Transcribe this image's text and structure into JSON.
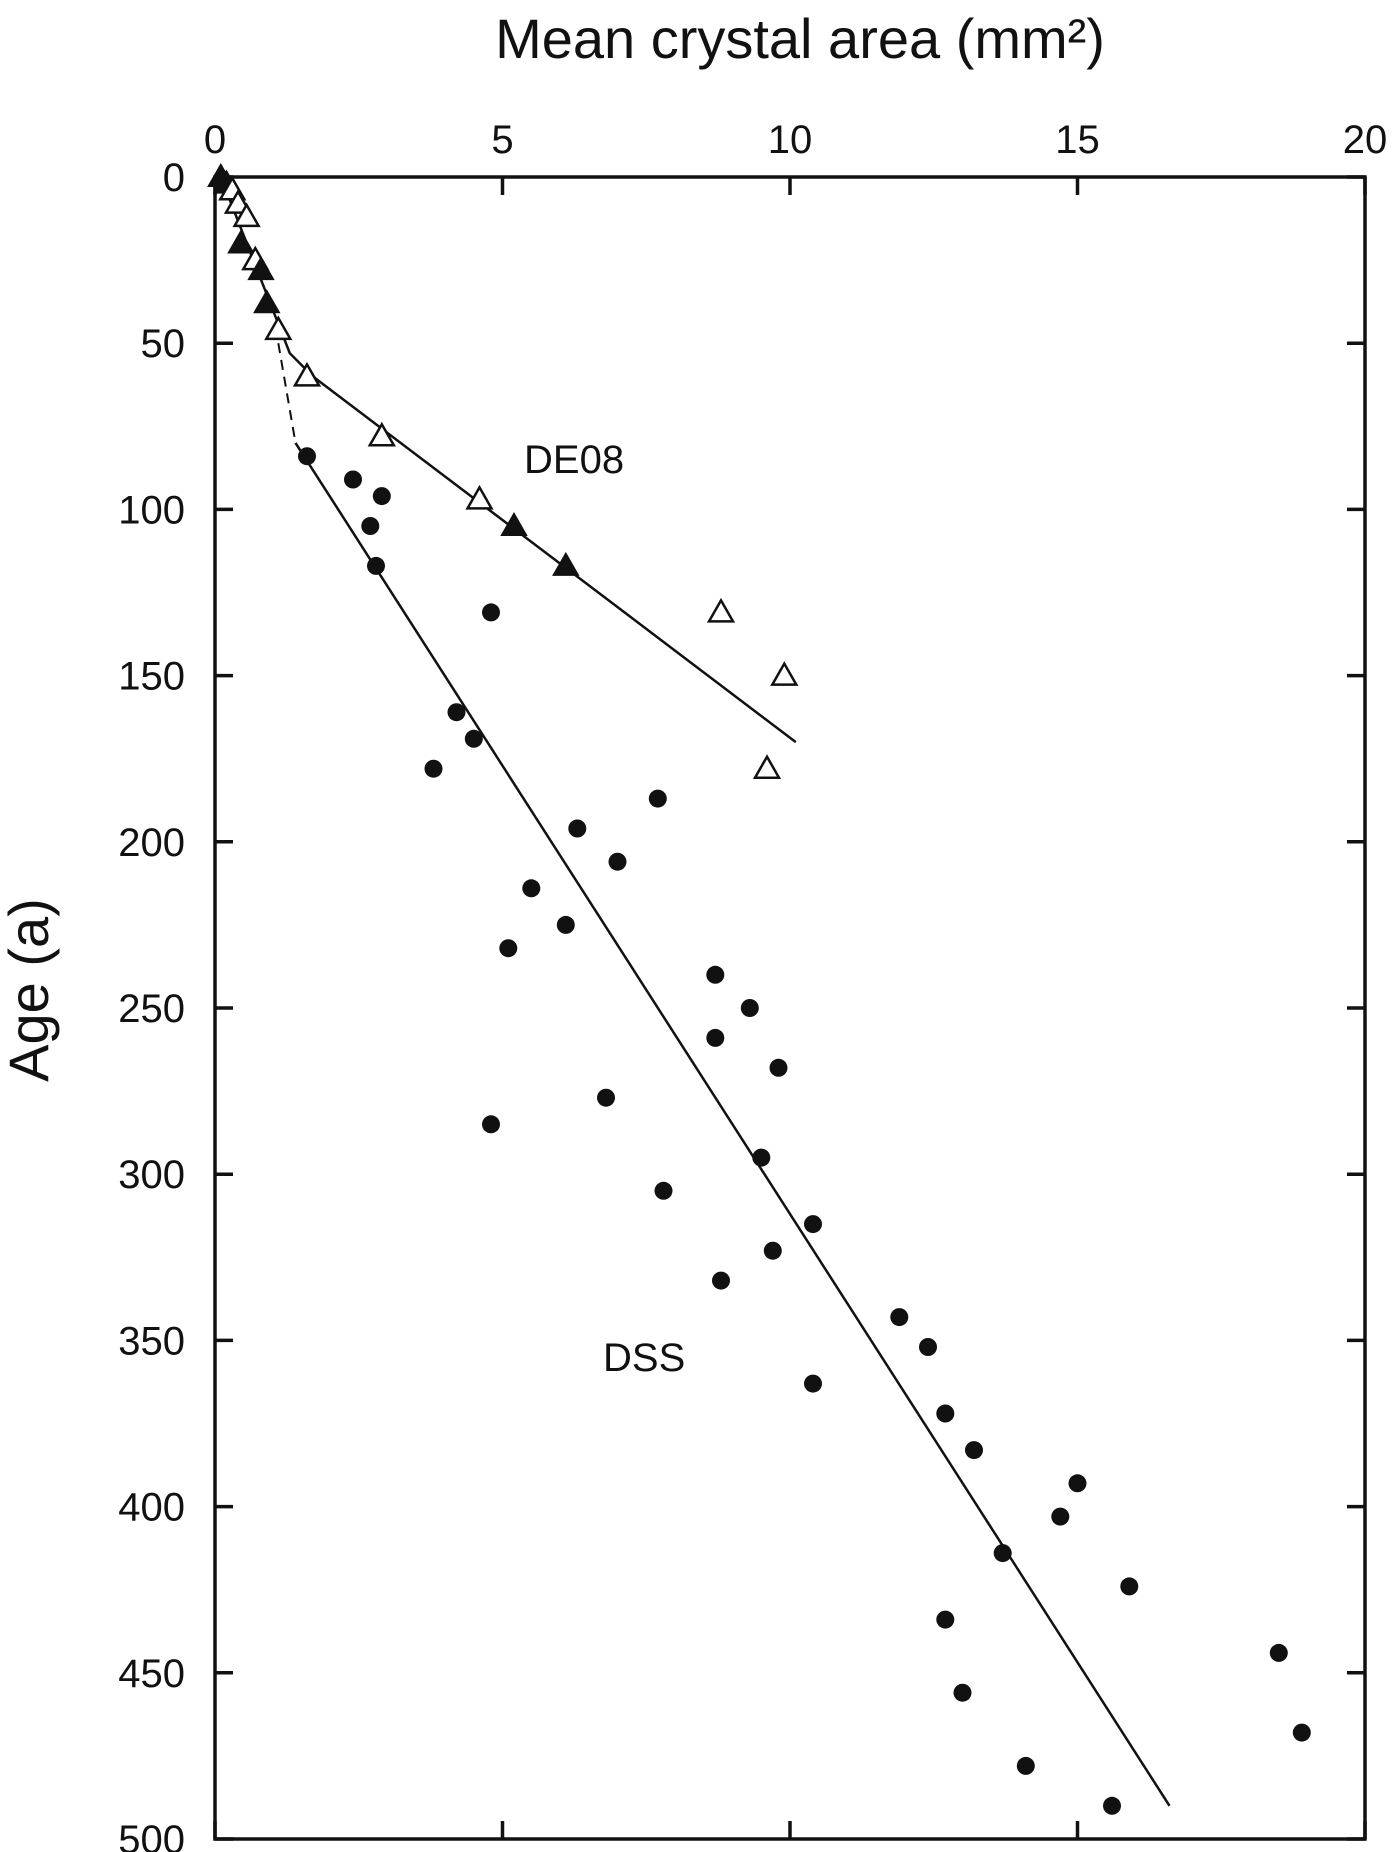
{
  "chart_data": {
    "type": "scatter",
    "title": "",
    "xlabel": "Mean crystal area (mm²)",
    "ylabel": "Age (a)",
    "xlim": [
      0,
      20
    ],
    "ylim": [
      0,
      500
    ],
    "y_inverted": true,
    "x_axis_position": "top",
    "x_ticks": [
      "0",
      "5",
      "10",
      "15",
      "20"
    ],
    "y_ticks": [
      "0",
      "50",
      "100",
      "150",
      "200",
      "250",
      "300",
      "350",
      "400",
      "450",
      "500"
    ],
    "grid": false,
    "legend": "none",
    "series": [
      {
        "name": "DE08",
        "marker": "triangle",
        "points": [
          {
            "x": 0.1,
            "y": 0,
            "filled": true
          },
          {
            "x": 0.2,
            "y": 2,
            "filled": true
          },
          {
            "x": 0.3,
            "y": 4,
            "filled": false
          },
          {
            "x": 0.4,
            "y": 8,
            "filled": false
          },
          {
            "x": 0.55,
            "y": 12,
            "filled": false
          },
          {
            "x": 0.45,
            "y": 20,
            "filled": true
          },
          {
            "x": 0.7,
            "y": 25,
            "filled": false
          },
          {
            "x": 0.8,
            "y": 28,
            "filled": true
          },
          {
            "x": 0.9,
            "y": 38,
            "filled": true
          },
          {
            "x": 1.1,
            "y": 46,
            "filled": false
          },
          {
            "x": 1.6,
            "y": 60,
            "filled": false
          },
          {
            "x": 2.9,
            "y": 78,
            "filled": false
          },
          {
            "x": 4.6,
            "y": 97,
            "filled": false
          },
          {
            "x": 5.2,
            "y": 105,
            "filled": true
          },
          {
            "x": 6.1,
            "y": 117,
            "filled": true
          },
          {
            "x": 8.8,
            "y": 131,
            "filled": false
          },
          {
            "x": 9.9,
            "y": 150,
            "filled": false
          },
          {
            "x": 9.6,
            "y": 178,
            "filled": false
          }
        ],
        "fit_line": [
          [
            0.1,
            0
          ],
          [
            1.3,
            53
          ],
          [
            1.7,
            60
          ],
          [
            10.1,
            170
          ]
        ]
      },
      {
        "name": "DSS",
        "marker": "circle",
        "points": [
          {
            "x": 1.6,
            "y": 84
          },
          {
            "x": 2.4,
            "y": 91
          },
          {
            "x": 2.9,
            "y": 96
          },
          {
            "x": 2.7,
            "y": 105
          },
          {
            "x": 2.8,
            "y": 117
          },
          {
            "x": 4.8,
            "y": 131
          },
          {
            "x": 4.2,
            "y": 161
          },
          {
            "x": 4.5,
            "y": 169
          },
          {
            "x": 3.8,
            "y": 178
          },
          {
            "x": 7.7,
            "y": 187
          },
          {
            "x": 6.3,
            "y": 196
          },
          {
            "x": 7.0,
            "y": 206
          },
          {
            "x": 5.5,
            "y": 214
          },
          {
            "x": 6.1,
            "y": 225
          },
          {
            "x": 5.1,
            "y": 232
          },
          {
            "x": 8.7,
            "y": 240
          },
          {
            "x": 9.3,
            "y": 250
          },
          {
            "x": 8.7,
            "y": 259
          },
          {
            "x": 9.8,
            "y": 268
          },
          {
            "x": 6.8,
            "y": 277
          },
          {
            "x": 4.8,
            "y": 285
          },
          {
            "x": 9.5,
            "y": 295
          },
          {
            "x": 7.8,
            "y": 305
          },
          {
            "x": 10.4,
            "y": 315
          },
          {
            "x": 9.7,
            "y": 323
          },
          {
            "x": 8.8,
            "y": 332
          },
          {
            "x": 11.9,
            "y": 343
          },
          {
            "x": 12.4,
            "y": 352
          },
          {
            "x": 10.4,
            "y": 363
          },
          {
            "x": 12.7,
            "y": 372
          },
          {
            "x": 13.2,
            "y": 383
          },
          {
            "x": 15.0,
            "y": 393
          },
          {
            "x": 14.7,
            "y": 403
          },
          {
            "x": 13.7,
            "y": 414
          },
          {
            "x": 15.9,
            "y": 424
          },
          {
            "x": 12.7,
            "y": 434
          },
          {
            "x": 18.5,
            "y": 444
          },
          {
            "x": 13.0,
            "y": 456
          },
          {
            "x": 18.9,
            "y": 468
          },
          {
            "x": 14.1,
            "y": 478
          },
          {
            "x": 15.6,
            "y": 490
          }
        ],
        "fit_line": [
          [
            1.4,
            80
          ],
          [
            16.6,
            490
          ]
        ],
        "connector_dashed": [
          [
            1.1,
            50
          ],
          [
            1.4,
            80
          ]
        ]
      }
    ]
  }
}
